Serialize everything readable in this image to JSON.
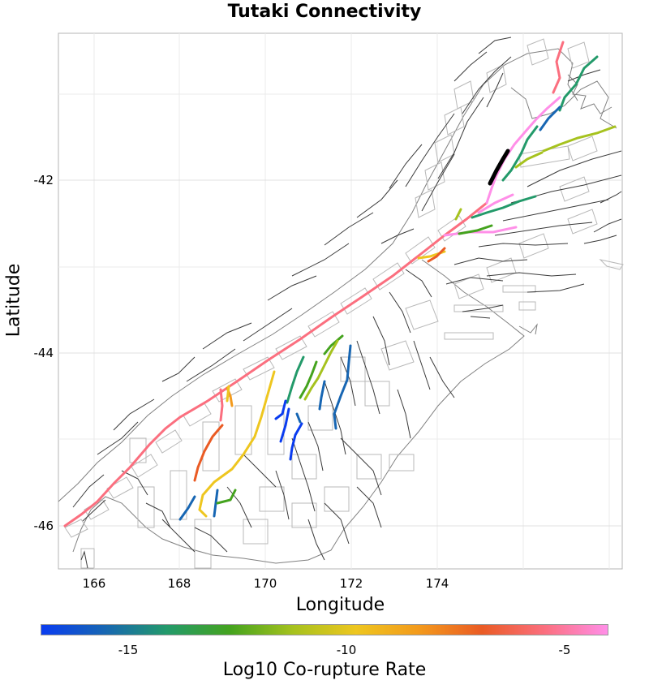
{
  "title": "Tutaki Connectivity",
  "x_axis": {
    "label": "Longitude",
    "ticks": [
      "166",
      "168",
      "170",
      "172",
      "174"
    ]
  },
  "y_axis": {
    "label": "Latitude",
    "ticks": [
      "-42",
      "-44",
      "-46"
    ]
  },
  "colorbar": {
    "label": "Log10 Co-rupture Rate",
    "ticks": [
      "-15",
      "-10",
      "-5"
    ],
    "colors": [
      "#0a3cf0",
      "#1766b3",
      "#239a6a",
      "#44a31e",
      "#a6c21e",
      "#eec61f",
      "#f39a1c",
      "#ea5b24",
      "#fb6f7f",
      "#ff8fe8"
    ]
  },
  "colors": {
    "background_fault": "#3a3a3a",
    "fault_box": "#b8b8b8",
    "coast": "#808080",
    "grid": "#ebebeb",
    "source_rupture": "#000000"
  }
}
